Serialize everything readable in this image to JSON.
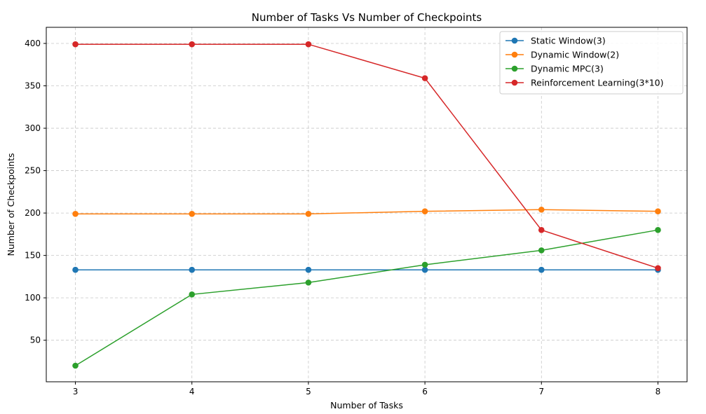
{
  "chart_data": {
    "type": "line",
    "title": "Number of Tasks Vs Number of Checkpoints",
    "xlabel": "Number of Tasks",
    "ylabel": "Number of Checkpoints",
    "x": [
      3,
      4,
      5,
      6,
      7,
      8
    ],
    "xticks": [
      3,
      4,
      5,
      6,
      7,
      8
    ],
    "yticks": [
      50,
      100,
      150,
      200,
      250,
      300,
      350,
      400
    ],
    "xlim": [
      2.75,
      8.25
    ],
    "ylim": [
      1,
      419
    ],
    "grid": true,
    "legend_position": "top-right",
    "series": [
      {
        "name": "Static Window(3)",
        "color": "#1f77b4",
        "values": [
          133,
          133,
          133,
          133,
          133,
          133
        ]
      },
      {
        "name": "Dynamic Window(2)",
        "color": "#ff7f0e",
        "values": [
          199,
          199,
          199,
          202,
          204,
          202
        ]
      },
      {
        "name": "Dynamic MPC(3)",
        "color": "#2ca02c",
        "values": [
          20,
          104,
          118,
          139,
          156,
          180
        ]
      },
      {
        "name": "Reinforcement Learning(3*10)",
        "color": "#d62728",
        "values": [
          399,
          399,
          399,
          359,
          180,
          135
        ]
      }
    ]
  }
}
